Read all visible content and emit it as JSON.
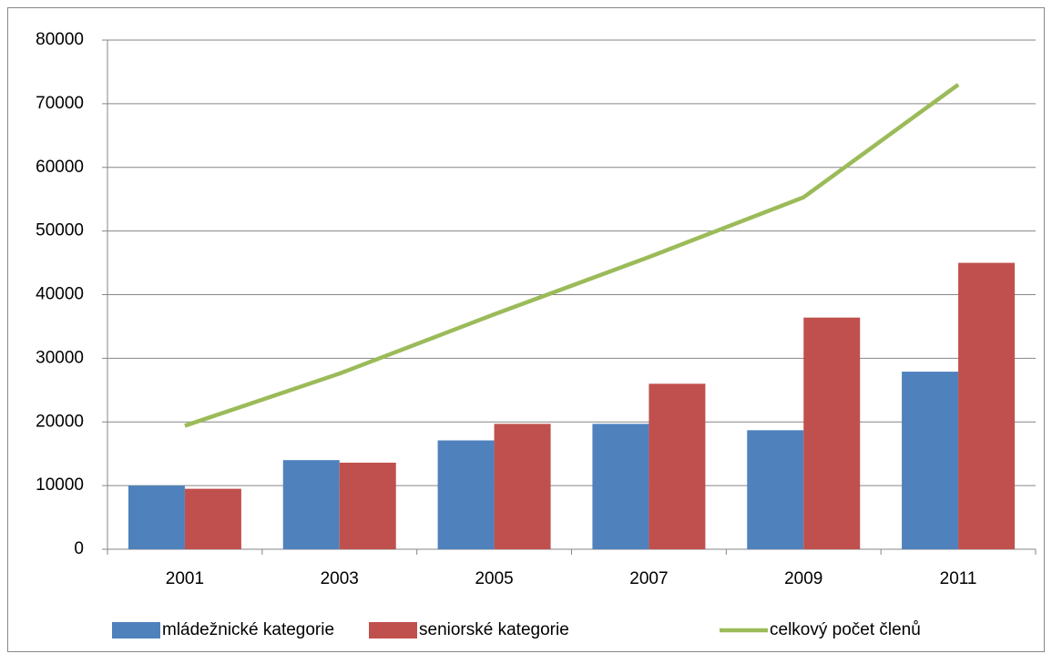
{
  "chart_data": {
    "type": "bar_line",
    "categories": [
      "2001",
      "2003",
      "2005",
      "2007",
      "2009",
      "2011"
    ],
    "series": [
      {
        "name": "mládežnické kategorie",
        "color": "#4f81bd",
        "type": "bar",
        "values": [
          10000,
          14000,
          17100,
          19700,
          18700,
          27900
        ]
      },
      {
        "name": "seniorské kategorie",
        "color": "#c0504d",
        "type": "bar",
        "values": [
          9500,
          13600,
          19700,
          26000,
          36400,
          45000
        ]
      },
      {
        "name": "celkový počet členů",
        "color": "#9bbb59",
        "type": "line",
        "values": [
          19400,
          27600,
          36900,
          45900,
          55300,
          73000
        ]
      }
    ],
    "ylim": [
      0,
      80000
    ],
    "yticks": [
      0,
      10000,
      20000,
      30000,
      40000,
      50000,
      60000,
      70000,
      80000
    ],
    "grid": true,
    "legend": "bottom"
  }
}
